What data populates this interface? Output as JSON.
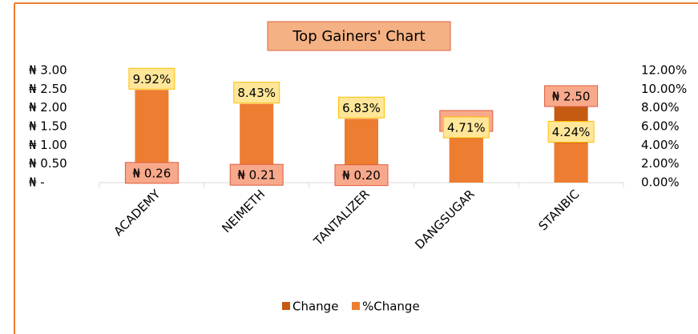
{
  "chart_data": {
    "type": "bar",
    "title": "Top Gainers' Chart",
    "categories": [
      "ACADEMY",
      "NEIMETH",
      "TANTALIZER",
      "DANGSUGAR",
      "STANBIC"
    ],
    "series": [
      {
        "name": "Change",
        "color": "#c55a11",
        "values": [
          0.26,
          0.21,
          0.2,
          1.65,
          2.5
        ],
        "value_labels": [
          "₦ 0.26",
          "₦ 0.21",
          "₦ 0.20",
          "₦ 1.65",
          "₦ 2.50"
        ]
      },
      {
        "name": "%Change",
        "color": "#ed7d31",
        "axis": "y2",
        "values": [
          9.92,
          8.43,
          6.83,
          4.71,
          4.24
        ],
        "value_labels": [
          "9.92%",
          "8.43%",
          "6.83%",
          "4.71%",
          "4.24%"
        ]
      }
    ],
    "ylim": [
      0,
      3
    ],
    "yticks": [
      {
        "value": 0,
        "label": "₦ -"
      },
      {
        "value": 0.5,
        "label": "₦ 0.50"
      },
      {
        "value": 1,
        "label": "₦ 1.00"
      },
      {
        "value": 1.5,
        "label": "₦ 1.50"
      },
      {
        "value": 2,
        "label": "₦ 2.00"
      },
      {
        "value": 2.5,
        "label": "₦ 2.50"
      },
      {
        "value": 3,
        "label": "₦ 3.00"
      }
    ],
    "y2lim": [
      0,
      12
    ],
    "y2ticks": [
      {
        "value": 0,
        "label": "0.00%"
      },
      {
        "value": 2,
        "label": "2.00%"
      },
      {
        "value": 4,
        "label": "4.00%"
      },
      {
        "value": 6,
        "label": "6.00%"
      },
      {
        "value": 8,
        "label": "8.00%"
      },
      {
        "value": 10,
        "label": "10.00%"
      },
      {
        "value": 12,
        "label": "12.00%"
      }
    ],
    "legend": "bottom"
  }
}
